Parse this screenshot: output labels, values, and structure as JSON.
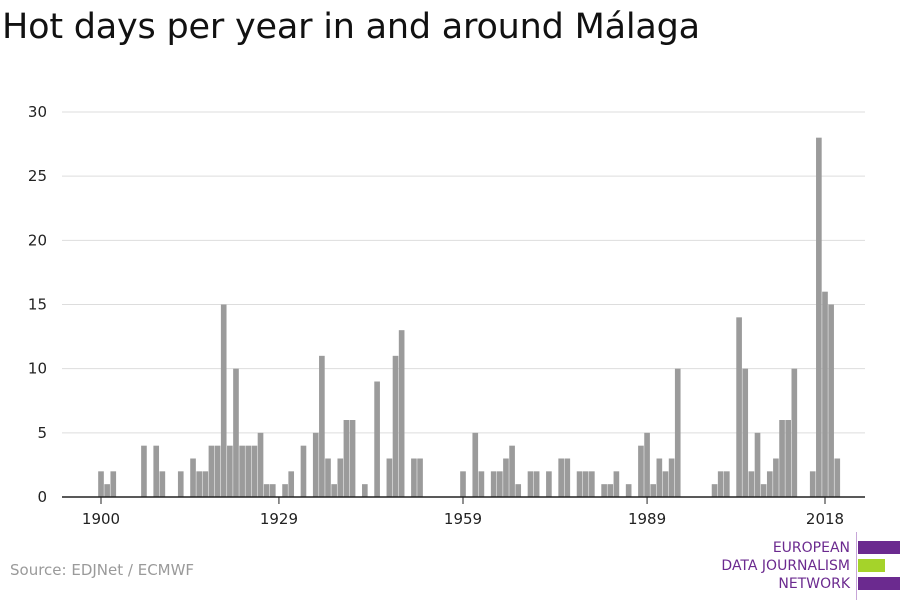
{
  "title": "Hot days per year in and around Málaga",
  "source": "Source: EDJNet / ECMWF",
  "logo": {
    "line1": "EUROPEAN",
    "line2": "DATA JOURNALISM",
    "line3": "NETWORK"
  },
  "colors": {
    "bar": "#9b9b9b",
    "grid": "#dddddd",
    "axis": "#222222",
    "logo_purple": "#6b2a8f",
    "logo_green": "#a5d32a"
  },
  "chart_data": {
    "type": "bar",
    "title": "Hot days per year in and around Málaga",
    "xlabel": "",
    "ylabel": "",
    "xlim": [
      1900,
      2018
    ],
    "ylim": [
      0,
      30
    ],
    "y_ticks": [
      0,
      5,
      10,
      15,
      20,
      25,
      30
    ],
    "x_ticks": [
      1900,
      1929,
      1959,
      1989,
      2018
    ],
    "grid": true,
    "legend": "none",
    "x": [
      1900,
      1901,
      1902,
      1903,
      1904,
      1905,
      1906,
      1907,
      1908,
      1909,
      1910,
      1911,
      1912,
      1913,
      1914,
      1915,
      1916,
      1917,
      1918,
      1919,
      1920,
      1921,
      1922,
      1923,
      1924,
      1925,
      1926,
      1927,
      1928,
      1929,
      1930,
      1931,
      1932,
      1933,
      1934,
      1935,
      1936,
      1937,
      1938,
      1939,
      1940,
      1941,
      1942,
      1943,
      1944,
      1945,
      1946,
      1947,
      1948,
      1949,
      1950,
      1951,
      1952,
      1953,
      1954,
      1955,
      1956,
      1957,
      1958,
      1959,
      1960,
      1961,
      1962,
      1963,
      1964,
      1965,
      1966,
      1967,
      1968,
      1969,
      1970,
      1971,
      1972,
      1973,
      1974,
      1975,
      1976,
      1977,
      1978,
      1979,
      1980,
      1981,
      1982,
      1983,
      1984,
      1985,
      1986,
      1987,
      1988,
      1989,
      1990,
      1991,
      1992,
      1993,
      1994,
      1995,
      1996,
      1997,
      1998,
      1999,
      2000,
      2001,
      2002,
      2003,
      2004,
      2005,
      2006,
      2007,
      2008,
      2009,
      2010,
      2011,
      2012,
      2013,
      2014,
      2015,
      2016,
      2017,
      2018,
      2019,
      2020
    ],
    "values": [
      2,
      1,
      2,
      0,
      0,
      0,
      0,
      4,
      0,
      4,
      2,
      0,
      0,
      2,
      0,
      3,
      2,
      2,
      4,
      4,
      15,
      4,
      10,
      4,
      4,
      4,
      5,
      1,
      1,
      0,
      1,
      2,
      0,
      4,
      0,
      5,
      11,
      3,
      1,
      3,
      6,
      6,
      0,
      1,
      0,
      9,
      0,
      3,
      11,
      13,
      0,
      3,
      3,
      0,
      0,
      0,
      0,
      0,
      0,
      2,
      0,
      5,
      2,
      0,
      2,
      2,
      3,
      4,
      1,
      0,
      2,
      2,
      0,
      2,
      0,
      3,
      3,
      0,
      2,
      2,
      2,
      0,
      1,
      1,
      2,
      0,
      1,
      0,
      4,
      5,
      1,
      3,
      2,
      3,
      10,
      0,
      0,
      0,
      0,
      0,
      1,
      2,
      2,
      0,
      14,
      10,
      2,
      5,
      1,
      2,
      3,
      6,
      6,
      10,
      0,
      0,
      2,
      28,
      16,
      15,
      3
    ]
  }
}
